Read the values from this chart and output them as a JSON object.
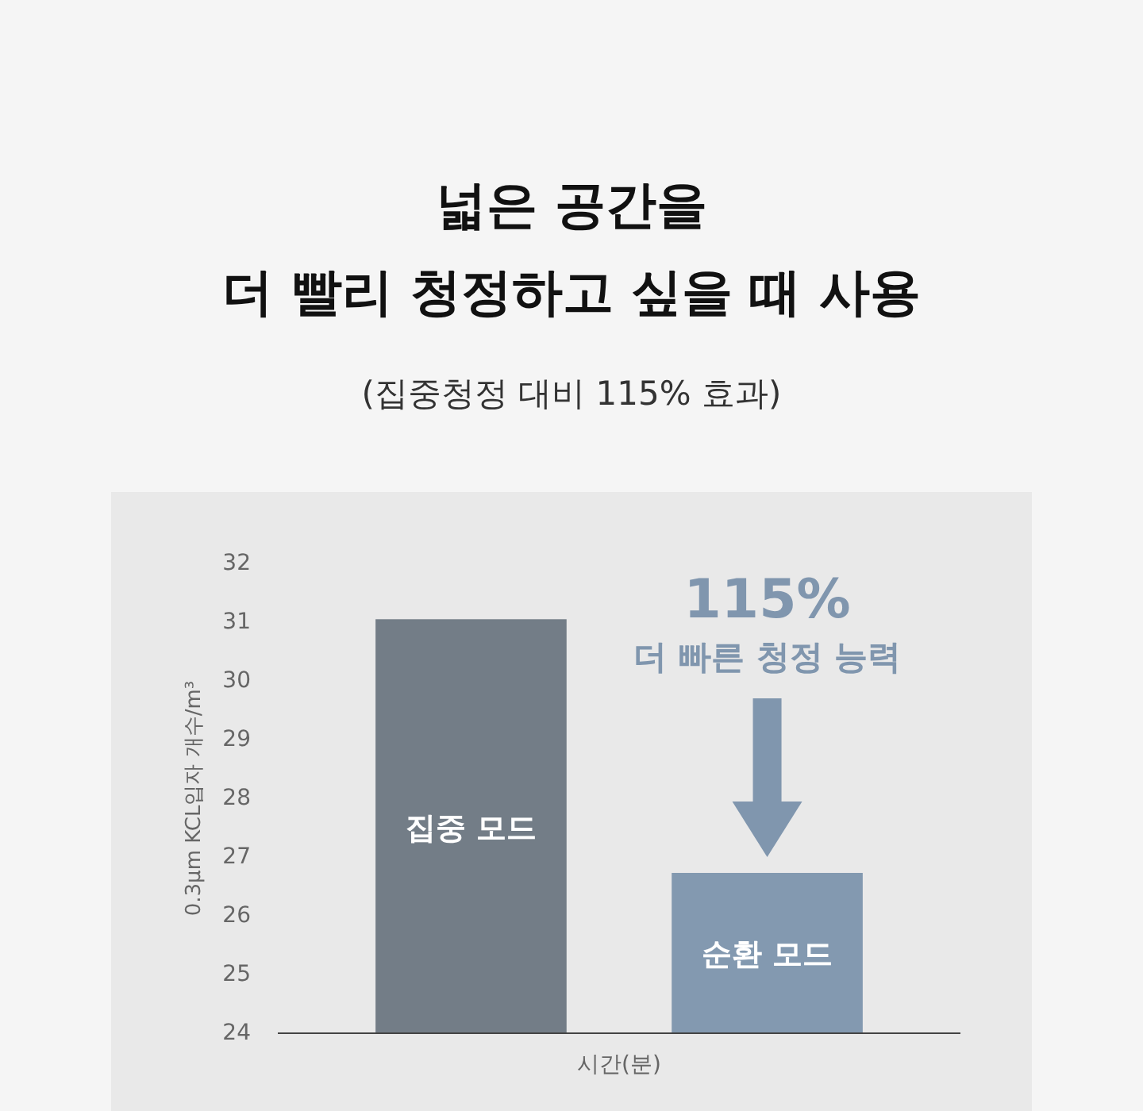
{
  "chart_data": {
    "type": "bar",
    "title": "넓은 공간을\n더 빨리 청정하고 싶을 때 사용",
    "subtitle": "(집중청정 대비 115% 효과)",
    "xlabel": "시간(분)",
    "ylabel": "0.3μm KCL입자 개수/m³",
    "categories": [
      "집중 모드",
      "순환 모드"
    ],
    "values": [
      31.05,
      26.73
    ],
    "colors": [
      "#737d87",
      "#8399b0"
    ],
    "ylim": [
      24,
      32
    ],
    "yticks": [
      24,
      25,
      26,
      27,
      28,
      29,
      30,
      31,
      32
    ],
    "annotations": [
      "115%",
      "더 빠른 청정 능력"
    ]
  }
}
